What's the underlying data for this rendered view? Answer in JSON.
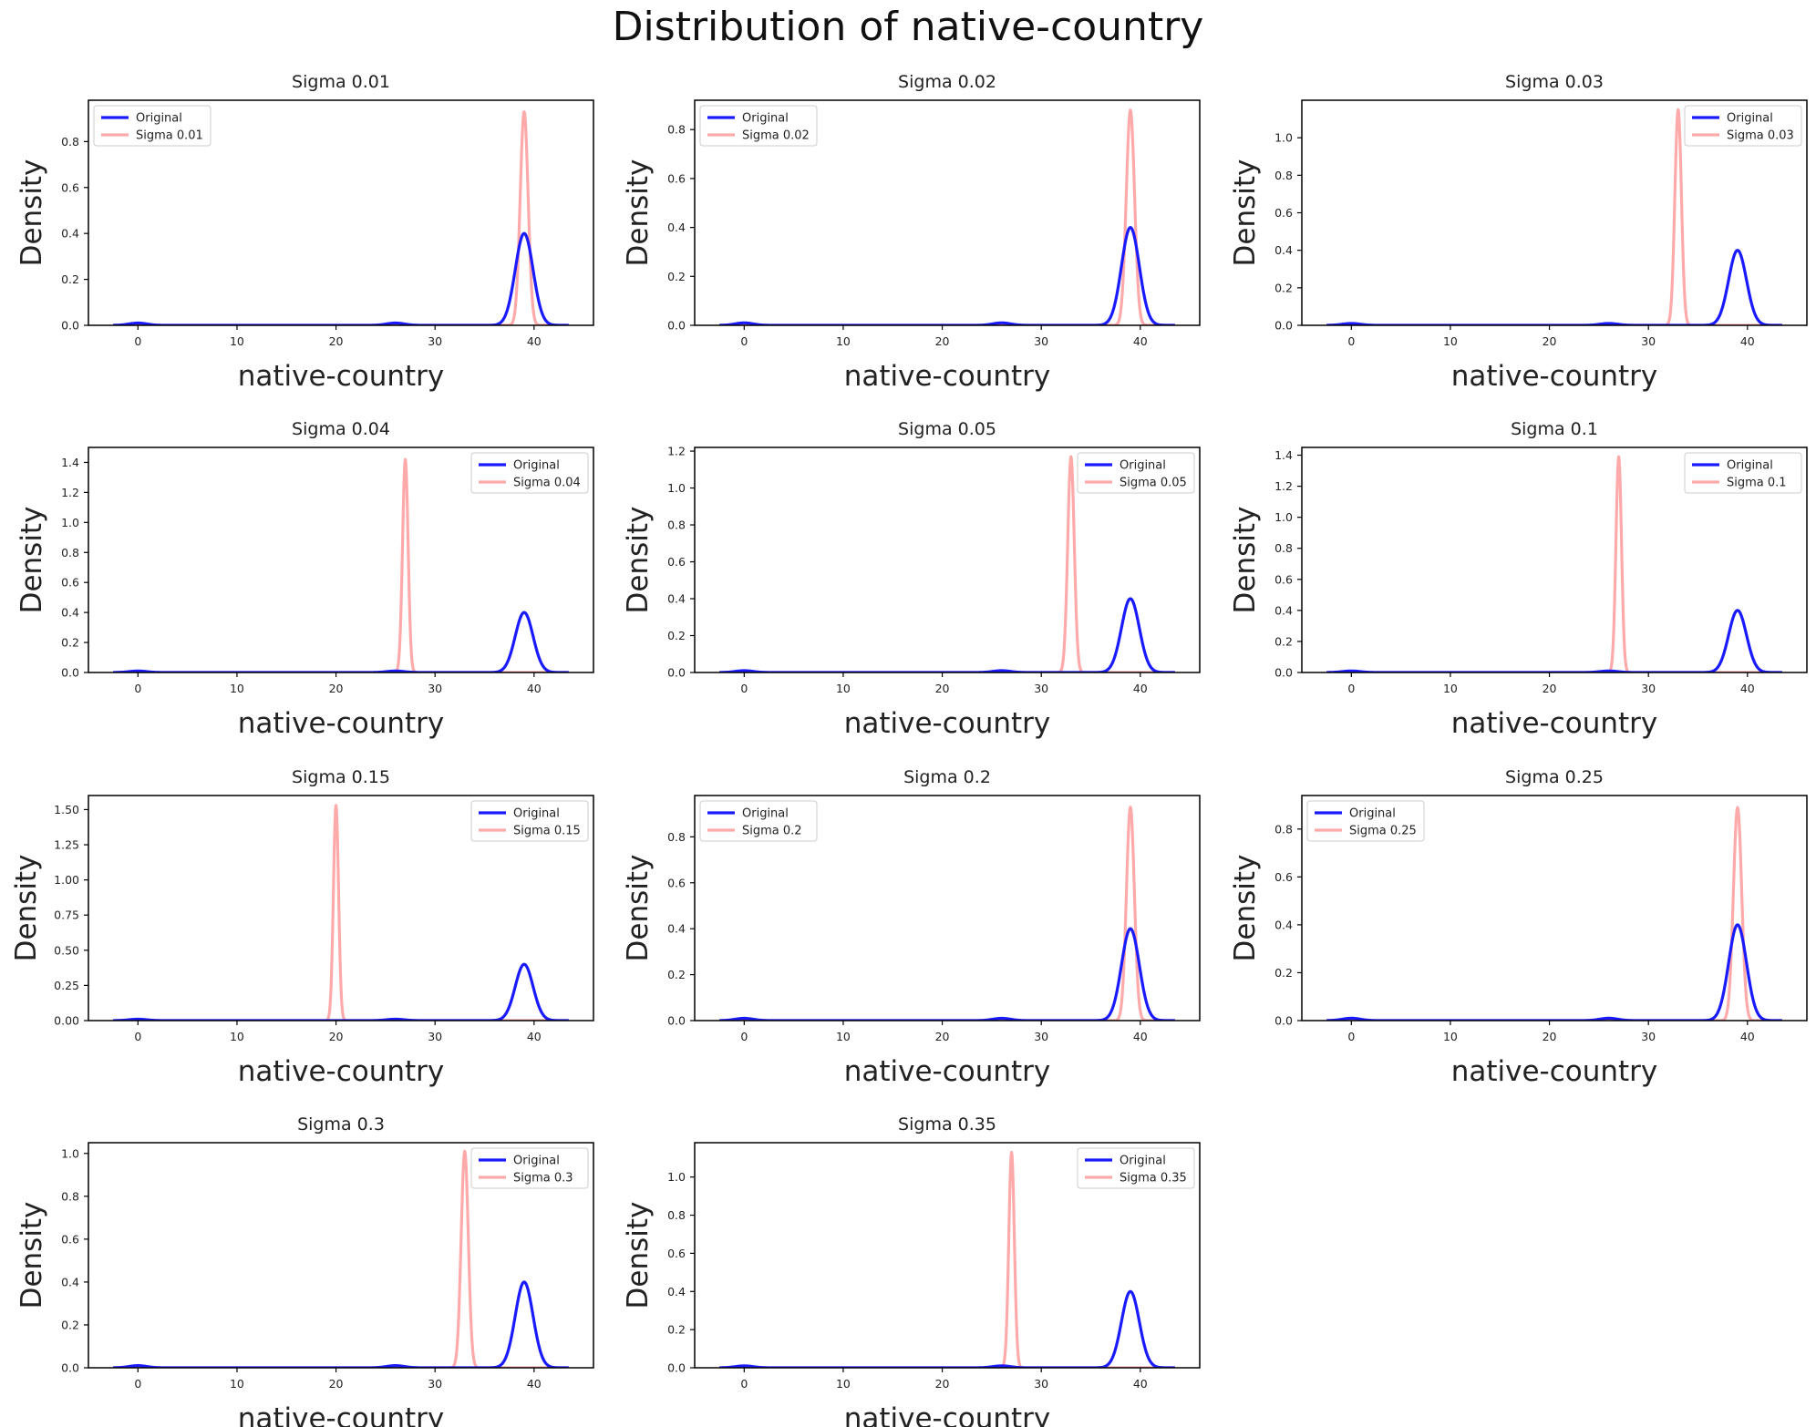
{
  "figure": {
    "title": "Distribution of native-country"
  },
  "colors": {
    "original": "#1a1aff",
    "perturbed": "#ffaaaa",
    "axes": "#000000",
    "background": "#ffffff"
  },
  "chart_data": [
    {
      "type": "line",
      "title": "Sigma 0.01",
      "xlabel": "native-country",
      "ylabel": "Density",
      "xlim": [
        -5,
        46
      ],
      "xticks": [
        0,
        10,
        20,
        30,
        40
      ],
      "ylim": [
        0,
        0.98
      ],
      "yticks": [
        0.0,
        0.2,
        0.4,
        0.6,
        0.8
      ],
      "legend_loc": "upper-left",
      "series": [
        {
          "name": "Original",
          "peaks": [
            [
              0,
              0.01,
              0.9
            ],
            [
              26,
              0.01,
              0.9
            ],
            [
              39,
              0.4,
              0.9
            ]
          ]
        },
        {
          "name": "Sigma 0.01",
          "peaks": [
            [
              39,
              0.93,
              0.4
            ]
          ]
        }
      ]
    },
    {
      "type": "line",
      "title": "Sigma 0.02",
      "xlabel": "native-country",
      "ylabel": "Density",
      "xlim": [
        -5,
        46
      ],
      "xticks": [
        0,
        10,
        20,
        30,
        40
      ],
      "ylim": [
        0,
        0.92
      ],
      "yticks": [
        0.0,
        0.2,
        0.4,
        0.6,
        0.8
      ],
      "legend_loc": "upper-left",
      "series": [
        {
          "name": "Original",
          "peaks": [
            [
              0,
              0.01,
              0.9
            ],
            [
              26,
              0.01,
              0.9
            ],
            [
              39,
              0.4,
              0.9
            ]
          ]
        },
        {
          "name": "Sigma 0.02",
          "peaks": [
            [
              39,
              0.88,
              0.42
            ]
          ]
        }
      ]
    },
    {
      "type": "line",
      "title": "Sigma 0.03",
      "xlabel": "native-country",
      "ylabel": "Density",
      "xlim": [
        -5,
        46
      ],
      "xticks": [
        0,
        10,
        20,
        30,
        40
      ],
      "ylim": [
        0,
        1.2
      ],
      "yticks": [
        0.0,
        0.2,
        0.4,
        0.6,
        0.8,
        1.0
      ],
      "legend_loc": "upper-right",
      "series": [
        {
          "name": "Original",
          "peaks": [
            [
              0,
              0.01,
              0.9
            ],
            [
              26,
              0.01,
              0.9
            ],
            [
              39,
              0.4,
              0.9
            ]
          ]
        },
        {
          "name": "Sigma 0.03",
          "peaks": [
            [
              33,
              1.15,
              0.33
            ]
          ]
        }
      ]
    },
    {
      "type": "line",
      "title": "Sigma 0.04",
      "xlabel": "native-country",
      "ylabel": "Density",
      "xlim": [
        -5,
        46
      ],
      "xticks": [
        0,
        10,
        20,
        30,
        40
      ],
      "ylim": [
        0,
        1.5
      ],
      "yticks": [
        0.0,
        0.2,
        0.4,
        0.6,
        0.8,
        1.0,
        1.2,
        1.4
      ],
      "legend_loc": "upper-right",
      "series": [
        {
          "name": "Original",
          "peaks": [
            [
              0,
              0.01,
              0.9
            ],
            [
              26,
              0.01,
              0.9
            ],
            [
              39,
              0.4,
              0.9
            ]
          ]
        },
        {
          "name": "Sigma 0.04",
          "peaks": [
            [
              27,
              1.42,
              0.28
            ]
          ]
        }
      ]
    },
    {
      "type": "line",
      "title": "Sigma 0.05",
      "xlabel": "native-country",
      "ylabel": "Density",
      "xlim": [
        -5,
        46
      ],
      "xticks": [
        0,
        10,
        20,
        30,
        40
      ],
      "ylim": [
        0,
        1.22
      ],
      "yticks": [
        0.0,
        0.2,
        0.4,
        0.6,
        0.8,
        1.0,
        1.2
      ],
      "legend_loc": "upper-right",
      "series": [
        {
          "name": "Original",
          "peaks": [
            [
              0,
              0.01,
              0.9
            ],
            [
              26,
              0.01,
              0.9
            ],
            [
              39,
              0.4,
              0.9
            ]
          ]
        },
        {
          "name": "Sigma 0.05",
          "peaks": [
            [
              33,
              1.17,
              0.33
            ]
          ]
        }
      ]
    },
    {
      "type": "line",
      "title": "Sigma 0.1",
      "xlabel": "native-country",
      "ylabel": "Density",
      "xlim": [
        -5,
        46
      ],
      "xticks": [
        0,
        10,
        20,
        30,
        40
      ],
      "ylim": [
        0,
        1.45
      ],
      "yticks": [
        0.0,
        0.2,
        0.4,
        0.6,
        0.8,
        1.0,
        1.2,
        1.4
      ],
      "legend_loc": "upper-right",
      "series": [
        {
          "name": "Original",
          "peaks": [
            [
              0,
              0.01,
              0.9
            ],
            [
              26,
              0.01,
              0.9
            ],
            [
              39,
              0.4,
              0.9
            ]
          ]
        },
        {
          "name": "Sigma 0.1",
          "peaks": [
            [
              27,
              1.39,
              0.28
            ]
          ]
        }
      ]
    },
    {
      "type": "line",
      "title": "Sigma 0.15",
      "xlabel": "native-country",
      "ylabel": "Density",
      "xlim": [
        -5,
        46
      ],
      "xticks": [
        0,
        10,
        20,
        30,
        40
      ],
      "ylim": [
        0,
        1.6
      ],
      "yticks": [
        0.0,
        0.25,
        0.5,
        0.75,
        1.0,
        1.25,
        1.5
      ],
      "ytick_labels": [
        "0.00",
        "0.25",
        "0.50",
        "0.75",
        "1.00",
        "1.25",
        "1.50"
      ],
      "legend_loc": "upper-right",
      "series": [
        {
          "name": "Original",
          "peaks": [
            [
              0,
              0.01,
              0.9
            ],
            [
              26,
              0.01,
              0.9
            ],
            [
              39,
              0.4,
              0.9
            ]
          ]
        },
        {
          "name": "Sigma 0.15",
          "peaks": [
            [
              20,
              1.53,
              0.26
            ]
          ]
        }
      ]
    },
    {
      "type": "line",
      "title": "Sigma 0.2",
      "xlabel": "native-country",
      "ylabel": "Density",
      "xlim": [
        -5,
        46
      ],
      "xticks": [
        0,
        10,
        20,
        30,
        40
      ],
      "ylim": [
        0,
        0.98
      ],
      "yticks": [
        0.0,
        0.2,
        0.4,
        0.6,
        0.8
      ],
      "legend_loc": "upper-left",
      "series": [
        {
          "name": "Original",
          "peaks": [
            [
              0,
              0.01,
              0.9
            ],
            [
              26,
              0.01,
              0.9
            ],
            [
              39,
              0.4,
              0.9
            ]
          ]
        },
        {
          "name": "Sigma 0.2",
          "peaks": [
            [
              39,
              0.93,
              0.4
            ]
          ]
        }
      ]
    },
    {
      "type": "line",
      "title": "Sigma 0.25",
      "xlabel": "native-country",
      "ylabel": "Density",
      "xlim": [
        -5,
        46
      ],
      "xticks": [
        0,
        10,
        20,
        30,
        40
      ],
      "ylim": [
        0,
        0.94
      ],
      "yticks": [
        0.0,
        0.2,
        0.4,
        0.6,
        0.8
      ],
      "legend_loc": "upper-left",
      "series": [
        {
          "name": "Original",
          "peaks": [
            [
              0,
              0.01,
              0.9
            ],
            [
              26,
              0.01,
              0.9
            ],
            [
              39,
              0.4,
              0.9
            ]
          ]
        },
        {
          "name": "Sigma 0.25",
          "peaks": [
            [
              39,
              0.89,
              0.42
            ]
          ]
        }
      ]
    },
    {
      "type": "line",
      "title": "Sigma 0.3",
      "xlabel": "native-country",
      "ylabel": "Density",
      "xlim": [
        -5,
        46
      ],
      "xticks": [
        0,
        10,
        20,
        30,
        40
      ],
      "ylim": [
        0,
        1.05
      ],
      "yticks": [
        0.0,
        0.2,
        0.4,
        0.6,
        0.8,
        1.0
      ],
      "legend_loc": "upper-right",
      "series": [
        {
          "name": "Original",
          "peaks": [
            [
              0,
              0.01,
              0.9
            ],
            [
              26,
              0.01,
              0.9
            ],
            [
              39,
              0.4,
              0.9
            ]
          ]
        },
        {
          "name": "Sigma 0.3",
          "peaks": [
            [
              33,
              1.01,
              0.36
            ]
          ]
        }
      ]
    },
    {
      "type": "line",
      "title": "Sigma 0.35",
      "xlabel": "native-country",
      "ylabel": "Density",
      "xlim": [
        -5,
        46
      ],
      "xticks": [
        0,
        10,
        20,
        30,
        40
      ],
      "ylim": [
        0,
        1.18
      ],
      "yticks": [
        0.0,
        0.2,
        0.4,
        0.6,
        0.8,
        1.0
      ],
      "legend_loc": "upper-right",
      "series": [
        {
          "name": "Original",
          "peaks": [
            [
              0,
              0.01,
              0.9
            ],
            [
              26,
              0.01,
              0.9
            ],
            [
              39,
              0.4,
              0.9
            ]
          ]
        },
        {
          "name": "Sigma 0.35",
          "peaks": [
            [
              27,
              1.13,
              0.28
            ]
          ]
        }
      ]
    }
  ]
}
